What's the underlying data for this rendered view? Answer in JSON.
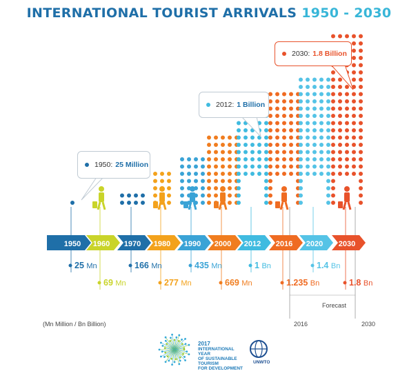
{
  "title": {
    "part1": "INTERNATIONAL TOURIST ARRIVALS",
    "part2": "1950 - 2030"
  },
  "colors": {
    "c1950": "#1f6fa8",
    "c1960": "#c9d42a",
    "c1970": "#1f6fa8",
    "c1980": "#f3a21c",
    "c1990": "#3aa3d6",
    "c2000": "#f07d1f",
    "c2012": "#40bbe0",
    "c2016": "#ef6b22",
    "c2020": "#55c3e6",
    "c2030": "#e8522b"
  },
  "timeline": [
    {
      "year": "1950",
      "value": "25",
      "unit": "Mn",
      "color": "#1f6fa8"
    },
    {
      "year": "1960",
      "value": "69",
      "unit": "Mn",
      "color": "#c9d42a"
    },
    {
      "year": "1970",
      "value": "166",
      "unit": "Mn",
      "color": "#1f6fa8"
    },
    {
      "year": "1980",
      "value": "277",
      "unit": "Mn",
      "color": "#f3a21c"
    },
    {
      "year": "1990",
      "value": "435",
      "unit": "Mn",
      "color": "#3aa3d6"
    },
    {
      "year": "2000",
      "value": "669",
      "unit": "Mn",
      "color": "#f07d1f"
    },
    {
      "year": "2012",
      "value": "1",
      "unit": "Bn",
      "color": "#40bbe0"
    },
    {
      "year": "2016",
      "value": "1.235",
      "unit": "Bn",
      "color": "#ef6b22"
    },
    {
      "year": "2020",
      "value": "1.4",
      "unit": "Bn",
      "color": "#55c3e6"
    },
    {
      "year": "2030",
      "value": "1.8",
      "unit": "Bn",
      "color": "#e8522b"
    }
  ],
  "callouts": [
    {
      "label": "1950:",
      "value": "25 Million",
      "color": "#1f6fa8"
    },
    {
      "label": "2012:",
      "value": "1 Billion",
      "color": "#40bbe0"
    },
    {
      "label": "2030:",
      "value": "1.8 Billion",
      "color": "#e8522b"
    }
  ],
  "forecast_label": "Forecast",
  "units_note": "(Mn Million / Bn Billion)",
  "range_labels": {
    "start": "2016",
    "end": "2030"
  },
  "logo": {
    "line1": "2017",
    "line2": "INTERNATIONAL YEAR",
    "line3": "OF SUSTAINABLE TOURISM",
    "line4": "FOR DEVELOPMENT",
    "org": "UNWTO"
  }
}
